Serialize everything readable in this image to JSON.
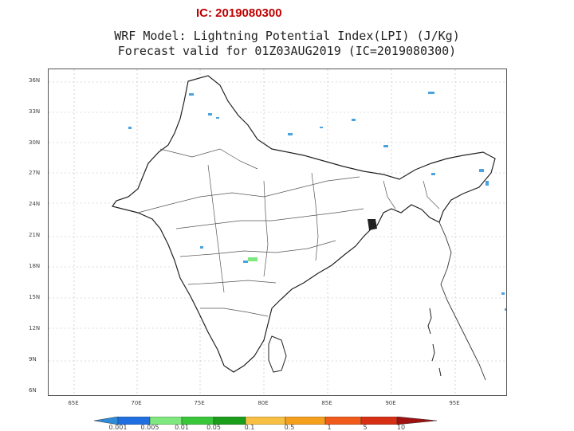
{
  "header": {
    "ic_label": "IC: 2019080300"
  },
  "title": {
    "line1": "WRF Model: Lightning Potential Index(LPI) (J/Kg)",
    "line2": "Forecast valid for 01Z03AUG2019 (IC=2019080300)"
  },
  "axes": {
    "lat_ticks": [
      "36N",
      "33N",
      "30N",
      "27N",
      "24N",
      "21N",
      "18N",
      "15N",
      "12N",
      "9N",
      "6N"
    ],
    "lon_ticks": [
      "65E",
      "70E",
      "75E",
      "80E",
      "85E",
      "90E",
      "95E"
    ]
  },
  "colorbar": {
    "labels": [
      "0.001",
      "0.005",
      "0.01",
      "0.05",
      "0.1",
      "0.5",
      "1",
      "5",
      "10"
    ],
    "colors": [
      "#2e8bd9",
      "#1f6fe0",
      "#7ee87e",
      "#39c639",
      "#1a9e1a",
      "#f7c042",
      "#f4a01c",
      "#f05a1a",
      "#d62f14",
      "#a01010"
    ]
  },
  "colors": {
    "land_fill": "#ffffff",
    "boundary": "#333333",
    "lpi_low": "#4aa3df",
    "lpi_mid": "#7ee87e"
  }
}
